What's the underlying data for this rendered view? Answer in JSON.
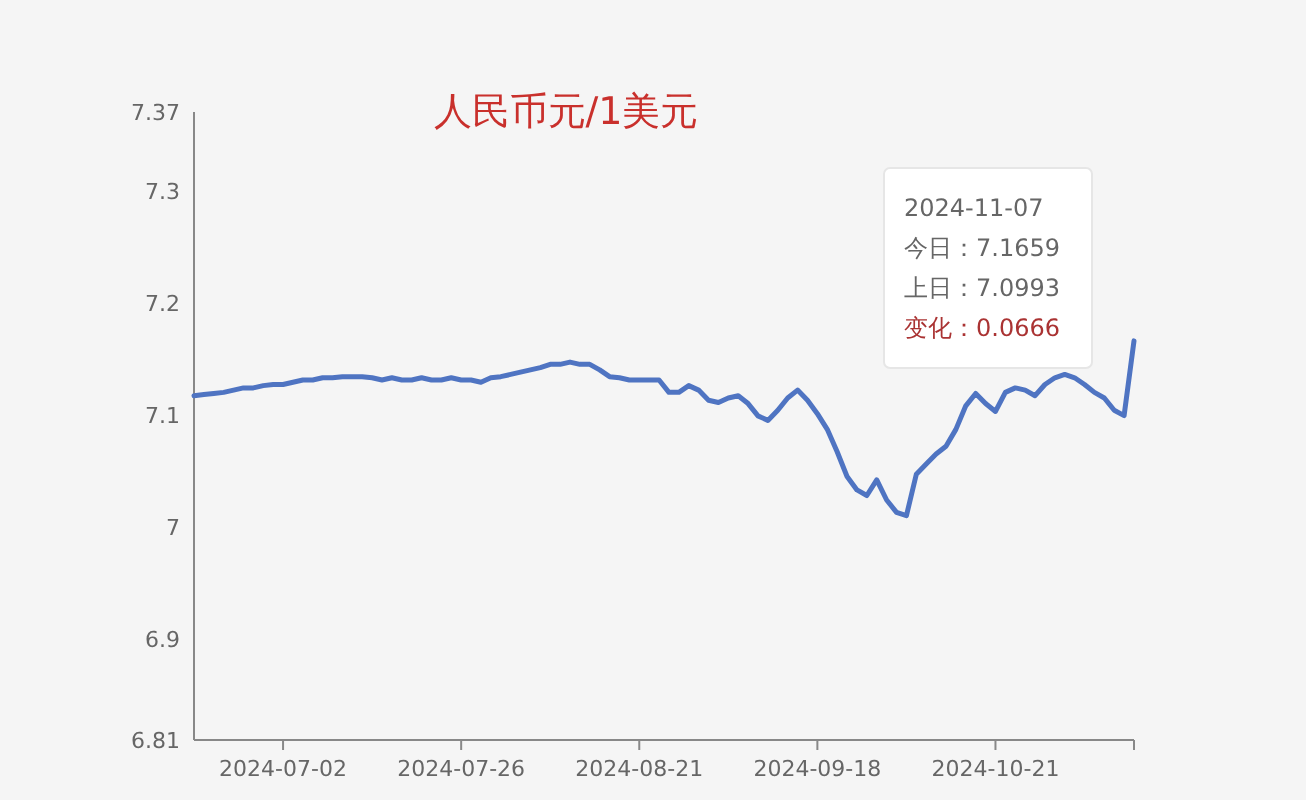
{
  "chart_data": {
    "type": "line",
    "title": "人民币元/1美元",
    "categories": [
      null,
      null,
      null,
      null,
      null,
      null,
      null,
      null,
      null,
      "2024-07-02",
      null,
      null,
      null,
      null,
      null,
      null,
      null,
      null,
      null,
      null,
      null,
      null,
      null,
      null,
      null,
      null,
      null,
      "2024-07-26",
      null,
      null,
      null,
      null,
      null,
      null,
      null,
      null,
      null,
      null,
      null,
      null,
      null,
      null,
      null,
      null,
      null,
      "2024-08-21",
      null,
      null,
      null,
      null,
      null,
      null,
      null,
      null,
      null,
      null,
      null,
      null,
      null,
      null,
      null,
      null,
      null,
      "2024-09-18",
      null,
      null,
      null,
      null,
      null,
      null,
      null,
      null,
      null,
      null,
      null,
      null,
      null,
      null,
      null,
      null,
      null,
      "2024-10-21",
      null,
      null,
      null,
      null,
      null,
      null,
      null,
      null,
      null,
      null,
      null,
      null,
      null,
      null
    ],
    "series": [
      {
        "color": "#4f74c2",
        "values": [
          7.117,
          7.118,
          7.119,
          7.12,
          7.122,
          7.124,
          7.124,
          7.126,
          7.127,
          7.127,
          7.129,
          7.131,
          7.131,
          7.133,
          7.133,
          7.134,
          7.134,
          7.134,
          7.133,
          7.131,
          7.133,
          7.131,
          7.131,
          7.133,
          7.131,
          7.131,
          7.133,
          7.131,
          7.131,
          7.129,
          7.133,
          7.134,
          7.136,
          7.138,
          7.14,
          7.142,
          7.145,
          7.145,
          7.147,
          7.145,
          7.145,
          7.14,
          7.134,
          7.133,
          7.131,
          7.131,
          7.131,
          7.131,
          7.12,
          7.12,
          7.126,
          7.122,
          7.113,
          7.111,
          7.115,
          7.117,
          7.11,
          7.099,
          7.095,
          7.104,
          7.115,
          7.122,
          7.113,
          7.101,
          7.087,
          7.067,
          7.045,
          7.033,
          7.028,
          7.042,
          7.024,
          7.013,
          7.01,
          7.047,
          7.056,
          7.065,
          7.072,
          7.087,
          7.108,
          7.119,
          7.11,
          7.103,
          7.12,
          7.124,
          7.122,
          7.117,
          7.127,
          7.133,
          7.136,
          7.133,
          7.127,
          7.12,
          7.115,
          7.104,
          7.0993,
          7.1659
        ]
      }
    ],
    "ylim": [
      6.81,
      7.37
    ],
    "yticks": [
      6.81,
      6.9,
      7,
      7.1,
      7.2,
      7.3,
      7.37
    ],
    "annotations": [
      "2024-11-07",
      "今日：7.1659",
      "上日：7.0993",
      "变化：0.0666"
    ],
    "grid": false,
    "marker": "none",
    "line_style": "solid"
  }
}
